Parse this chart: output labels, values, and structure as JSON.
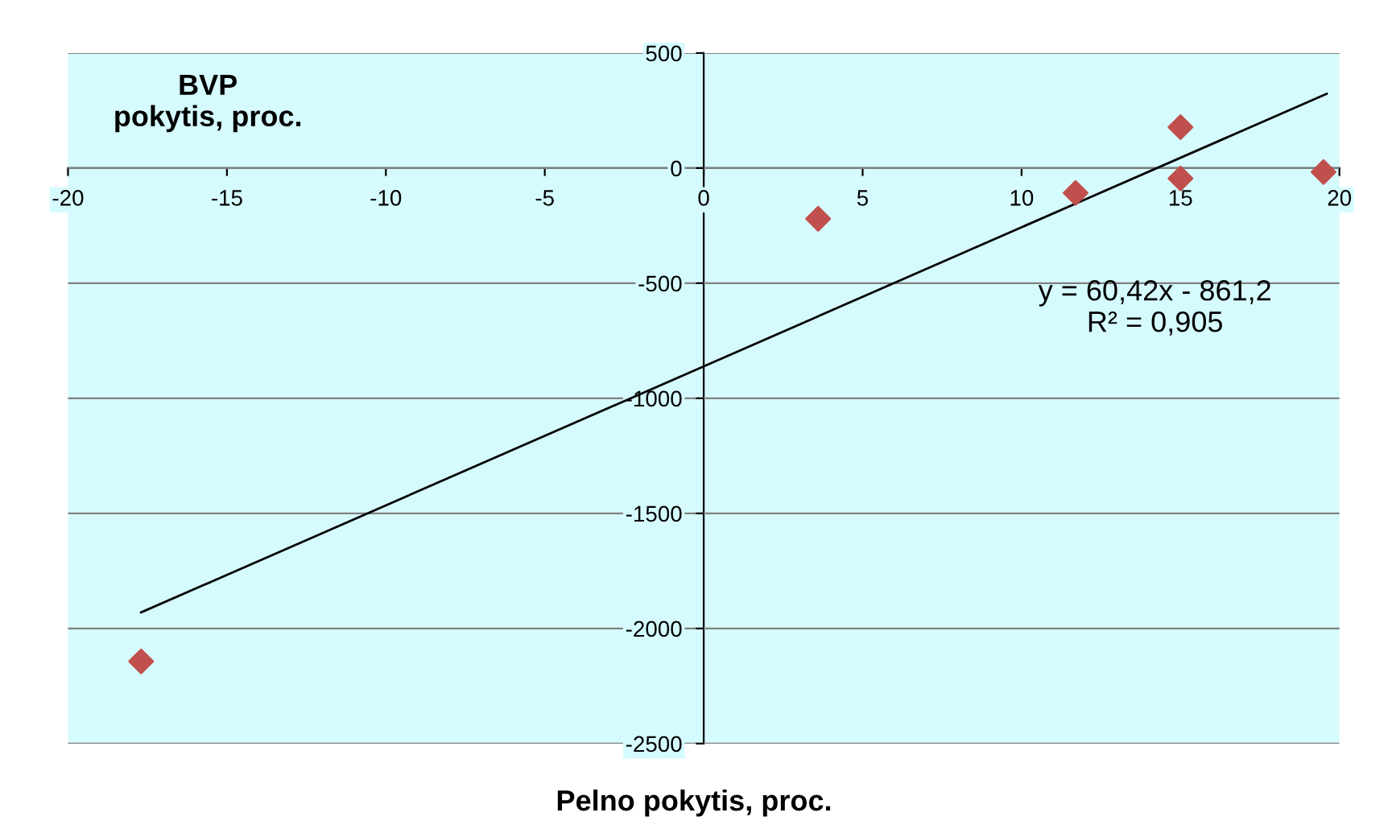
{
  "chart_data": {
    "type": "scatter",
    "ylabel": "BVP\npokytis, proc.",
    "xlabel": "Pelno pokytis, proc.",
    "xlim": [
      -20,
      20
    ],
    "xticks": [
      -20,
      -15,
      -10,
      -5,
      0,
      5,
      10,
      15,
      20
    ],
    "ylim": [
      -2500,
      500
    ],
    "yticks": [
      -2500,
      -2000,
      -1500,
      -1000,
      -500,
      0,
      500
    ],
    "grid": "y",
    "legend": false,
    "series": [
      {
        "color": "#c0504d",
        "marker": "diamond",
        "x": [
          -17.7,
          3.6,
          11.7,
          15,
          15,
          19.5
        ],
        "values": [
          -2143,
          -220,
          -108,
          178,
          -45,
          -17
        ]
      },
      {
        "type": "line",
        "color": "#000000",
        "x": [
          -17.7,
          19.6
        ],
        "values": [
          -1930,
          323
        ]
      }
    ],
    "annotations": [
      "y = 60,42x - 861,2\nR² = 0,905"
    ]
  }
}
